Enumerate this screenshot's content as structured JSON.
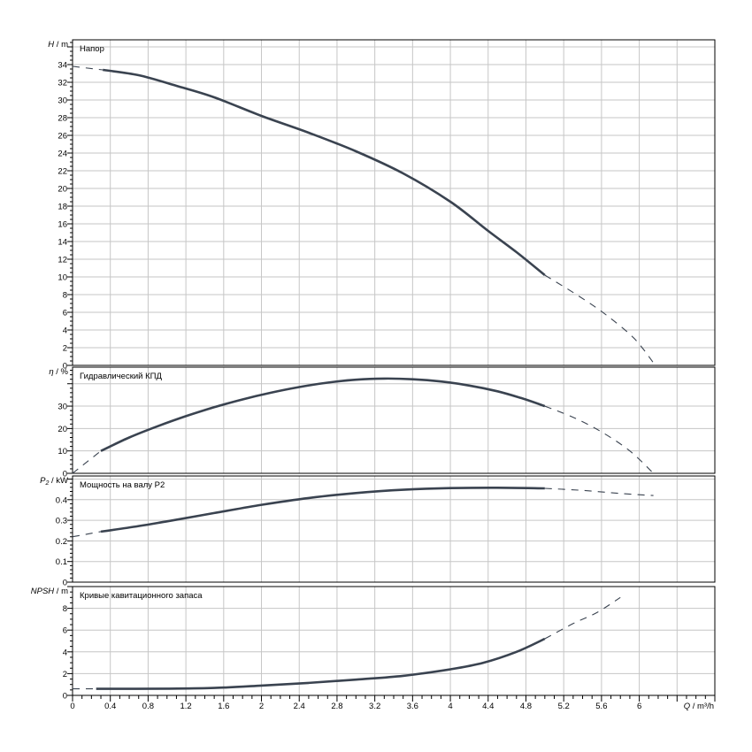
{
  "page": {
    "background": "#ffffff"
  },
  "colors": {
    "curve": "#3a4350",
    "grid": "#c6c6c6",
    "frame": "#000000",
    "text": "#000000"
  },
  "x_axis": {
    "label_var": "Q",
    "label_rest": " / m³/h",
    "xlim": [
      0,
      6.8
    ],
    "major_step": 0.4,
    "minor_step": 0.1,
    "tick_labels": [
      {
        "v": 0,
        "t": "0"
      },
      {
        "v": 0.4,
        "t": "0.4"
      },
      {
        "v": 0.8,
        "t": "0.8"
      },
      {
        "v": 1.2,
        "t": "1.2"
      },
      {
        "v": 1.6,
        "t": "1.6"
      },
      {
        "v": 2,
        "t": "2"
      },
      {
        "v": 2.4,
        "t": "2.4"
      },
      {
        "v": 2.8,
        "t": "2.8"
      },
      {
        "v": 3.2,
        "t": "3.2"
      },
      {
        "v": 3.6,
        "t": "3.6"
      },
      {
        "v": 4,
        "t": "4"
      },
      {
        "v": 4.4,
        "t": "4.4"
      },
      {
        "v": 4.8,
        "t": "4.8"
      },
      {
        "v": 5.2,
        "t": "5.2"
      },
      {
        "v": 5.6,
        "t": "5.6"
      },
      {
        "v": 6,
        "t": "6"
      }
    ]
  },
  "chart_data": [
    {
      "key": "head",
      "type": "line",
      "title": "Напор",
      "ylabel_var": "H",
      "ylabel_sub": "",
      "ylabel_rest": " / m",
      "ylim": [
        0,
        36.8
      ],
      "ymajor_step": 2,
      "yminor_step": 0.5,
      "ygrid": [
        2,
        4,
        6,
        8,
        10,
        12,
        14,
        16,
        18,
        20,
        22,
        24,
        26,
        28,
        30,
        32,
        34,
        36
      ],
      "ytick_labels": [
        {
          "v": 0,
          "t": "0"
        },
        {
          "v": 2,
          "t": "2"
        },
        {
          "v": 4,
          "t": "4"
        },
        {
          "v": 6,
          "t": "6"
        },
        {
          "v": 8,
          "t": "8"
        },
        {
          "v": 10,
          "t": "10"
        },
        {
          "v": 12,
          "t": "12"
        },
        {
          "v": 14,
          "t": "14"
        },
        {
          "v": 16,
          "t": "16"
        },
        {
          "v": 18,
          "t": "18"
        },
        {
          "v": 20,
          "t": "20"
        },
        {
          "v": 22,
          "t": "22"
        },
        {
          "v": 24,
          "t": "24"
        },
        {
          "v": 26,
          "t": "26"
        },
        {
          "v": 28,
          "t": "28"
        },
        {
          "v": 30,
          "t": "30"
        },
        {
          "v": 32,
          "t": "32"
        },
        {
          "v": 34,
          "t": "34"
        }
      ],
      "series": [
        {
          "name": "head-curve-dashed-start",
          "style": "dashed",
          "points": [
            [
              0,
              33.8
            ],
            [
              0.32,
              33.4
            ]
          ]
        },
        {
          "name": "head-curve",
          "style": "solid",
          "points": [
            [
              0.32,
              33.4
            ],
            [
              0.7,
              32.8
            ],
            [
              1.1,
              31.6
            ],
            [
              1.5,
              30.3
            ],
            [
              2.0,
              28.2
            ],
            [
              2.5,
              26.3
            ],
            [
              3.0,
              24.2
            ],
            [
              3.5,
              21.7
            ],
            [
              4.0,
              18.5
            ],
            [
              4.4,
              15.2
            ],
            [
              4.7,
              12.8
            ],
            [
              5.0,
              10.2
            ]
          ]
        },
        {
          "name": "head-curve-dashed-end",
          "style": "dashed",
          "points": [
            [
              5.0,
              10.2
            ],
            [
              5.35,
              7.9
            ],
            [
              5.65,
              5.7
            ],
            [
              5.95,
              3.0
            ],
            [
              6.17,
              0
            ]
          ]
        }
      ]
    },
    {
      "key": "efficiency",
      "type": "line",
      "title": "Гидравлический КПД",
      "ylabel_var": "η",
      "ylabel_sub": "",
      "ylabel_rest": " / %",
      "ylim": [
        0,
        47.4
      ],
      "ymajor_step": 10,
      "yminor_step": 2,
      "ygrid": [
        10,
        20,
        30,
        40
      ],
      "ytick_labels": [
        {
          "v": 0,
          "t": "0"
        },
        {
          "v": 10,
          "t": "10"
        },
        {
          "v": 20,
          "t": "20"
        },
        {
          "v": 30,
          "t": "30"
        }
      ],
      "series": [
        {
          "name": "efficiency-curve-dashed-start",
          "style": "dashed",
          "points": [
            [
              0,
              0
            ],
            [
              0.3,
              10
            ]
          ]
        },
        {
          "name": "efficiency-curve",
          "style": "solid",
          "points": [
            [
              0.3,
              10
            ],
            [
              0.6,
              16
            ],
            [
              0.9,
              21
            ],
            [
              1.2,
              25.5
            ],
            [
              1.5,
              29.5
            ],
            [
              1.8,
              33
            ],
            [
              2.1,
              36
            ],
            [
              2.4,
              38.5
            ],
            [
              2.7,
              40.5
            ],
            [
              3.0,
              41.8
            ],
            [
              3.3,
              42.3
            ],
            [
              3.6,
              42
            ],
            [
              3.9,
              41
            ],
            [
              4.2,
              39.2
            ],
            [
              4.5,
              36.6
            ],
            [
              4.75,
              33.6
            ],
            [
              5.0,
              30
            ]
          ]
        },
        {
          "name": "efficiency-curve-dashed-end",
          "style": "dashed",
          "points": [
            [
              5.0,
              30
            ],
            [
              5.3,
              25
            ],
            [
              5.6,
              18.5
            ],
            [
              5.9,
              10
            ],
            [
              6.15,
              0
            ]
          ]
        }
      ]
    },
    {
      "key": "power",
      "type": "line",
      "title": "Мощность на валу P2",
      "ylabel_var": "P",
      "ylabel_sub": "2",
      "ylabel_rest": " / kW",
      "ylim": [
        0,
        0.515
      ],
      "ymajor_step": 0.1,
      "yminor_step": 0.02,
      "ygrid": [
        0.1,
        0.2,
        0.3,
        0.4,
        0.5
      ],
      "ytick_labels": [
        {
          "v": 0,
          "t": "0"
        },
        {
          "v": 0.1,
          "t": "0.1"
        },
        {
          "v": 0.2,
          "t": "0.2"
        },
        {
          "v": 0.3,
          "t": "0.3"
        },
        {
          "v": 0.4,
          "t": "0.4"
        }
      ],
      "series": [
        {
          "name": "power-curve-dashed-start",
          "style": "dashed",
          "points": [
            [
              0,
              0.22
            ],
            [
              0.3,
              0.245
            ]
          ]
        },
        {
          "name": "power-curve",
          "style": "solid",
          "points": [
            [
              0.3,
              0.245
            ],
            [
              0.7,
              0.272
            ],
            [
              1.0,
              0.295
            ],
            [
              1.5,
              0.335
            ],
            [
              2.0,
              0.375
            ],
            [
              2.5,
              0.408
            ],
            [
              3.0,
              0.432
            ],
            [
              3.5,
              0.448
            ],
            [
              4.0,
              0.456
            ],
            [
              4.5,
              0.458
            ],
            [
              5.0,
              0.455
            ]
          ]
        },
        {
          "name": "power-curve-dashed-end",
          "style": "dashed",
          "points": [
            [
              5.0,
              0.455
            ],
            [
              5.4,
              0.445
            ],
            [
              5.8,
              0.43
            ],
            [
              6.15,
              0.42
            ]
          ]
        }
      ]
    },
    {
      "key": "npsh",
      "type": "line",
      "title": "Кривые кавитационного запаса",
      "ylabel_var": "NPSH",
      "ylabel_sub": "",
      "ylabel_rest": " / m",
      "ylim": [
        0,
        10
      ],
      "ymajor_step": 2,
      "yminor_step": 0.5,
      "ygrid": [
        2,
        4,
        6,
        8
      ],
      "ytick_labels": [
        {
          "v": 0,
          "t": "0"
        },
        {
          "v": 2,
          "t": "2"
        },
        {
          "v": 4,
          "t": "4"
        },
        {
          "v": 6,
          "t": "6"
        },
        {
          "v": 8,
          "t": "8"
        }
      ],
      "series": [
        {
          "name": "npsh-curve-dashed-start",
          "style": "dashed",
          "points": [
            [
              0,
              0.6
            ],
            [
              0.25,
              0.6
            ]
          ]
        },
        {
          "name": "npsh-curve",
          "style": "solid",
          "points": [
            [
              0.25,
              0.6
            ],
            [
              1.0,
              0.62
            ],
            [
              1.5,
              0.68
            ],
            [
              2.0,
              0.9
            ],
            [
              2.5,
              1.15
            ],
            [
              3.0,
              1.45
            ],
            [
              3.5,
              1.8
            ],
            [
              4.0,
              2.4
            ],
            [
              4.35,
              3.0
            ],
            [
              4.7,
              4.0
            ],
            [
              5.0,
              5.2
            ]
          ]
        },
        {
          "name": "npsh-curve-dashed-end",
          "style": "dashed",
          "points": [
            [
              5.0,
              5.2
            ],
            [
              5.3,
              6.6
            ],
            [
              5.55,
              7.6
            ],
            [
              5.8,
              9.0
            ]
          ]
        }
      ]
    }
  ]
}
